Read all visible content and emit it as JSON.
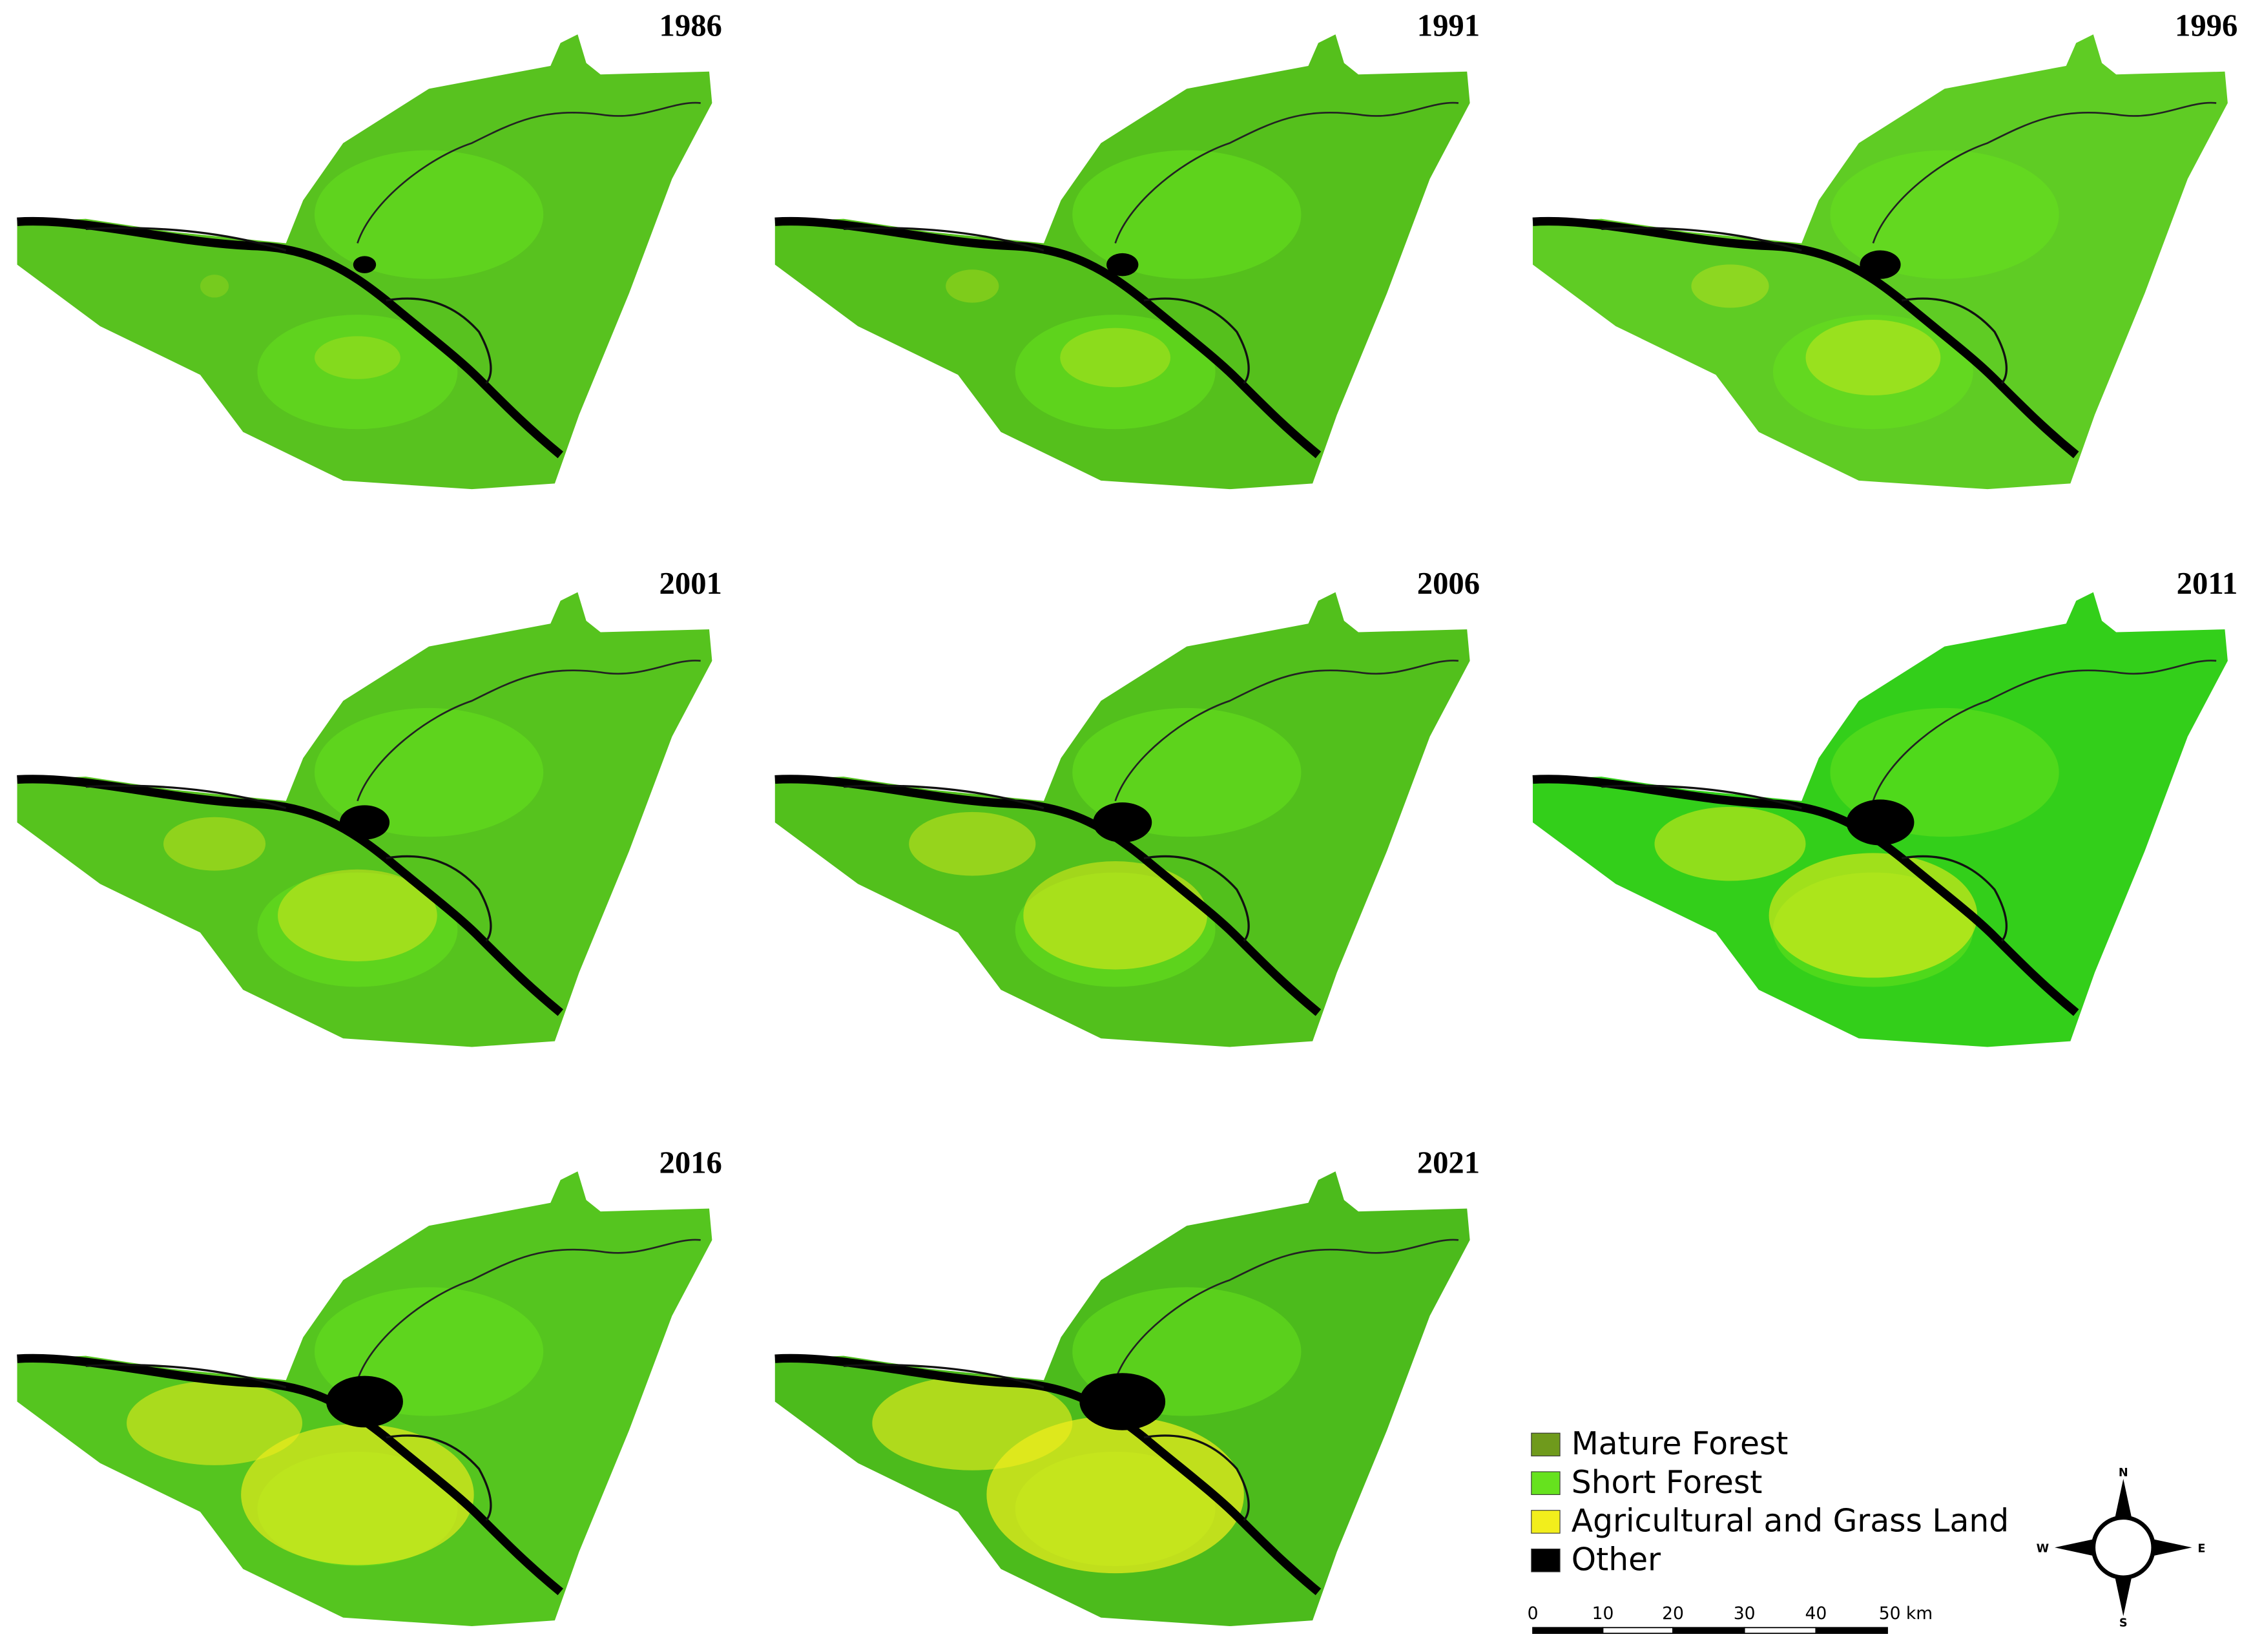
{
  "panels": [
    {
      "year": "1986"
    },
    {
      "year": "1991"
    },
    {
      "year": "1996"
    },
    {
      "year": "2001"
    },
    {
      "year": "2006"
    },
    {
      "year": "2011"
    },
    {
      "year": "2016"
    },
    {
      "year": "2021"
    }
  ],
  "legend": [
    {
      "label": "Mature Forest",
      "color": "#6f9a1c"
    },
    {
      "label": "Short Forest",
      "color": "#66e21e"
    },
    {
      "label": "Agricultural and Grass Land",
      "color": "#f2ee1c"
    },
    {
      "label": "Other",
      "color": "#000000"
    }
  ],
  "scale_bar": {
    "labels": [
      "0",
      "10",
      "20",
      "30",
      "40",
      "50 km"
    ]
  },
  "compass": {
    "north": "N",
    "south": "S",
    "east": "E",
    "west": "W"
  }
}
